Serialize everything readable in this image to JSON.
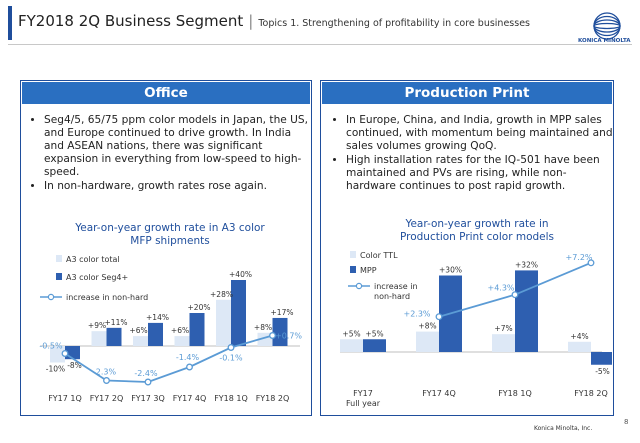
{
  "header": {
    "title": "FY2018 2Q Business Segment",
    "separator": "|",
    "subtitle": "Topics 1. Strengthening of profitability in core businesses",
    "brand": "KONICA MINOLTA"
  },
  "office": {
    "heading": "Office",
    "bullets": [
      "Seg4/5, 65/75 ppm color models in Japan, the US, and Europe continued to drive growth. In India and ASEAN nations, there was significant expansion in everything from low-speed to high-speed.",
      "In non-hardware, growth rates rose again."
    ],
    "chart_title_line1": "Year-on-year growth rate in A3 color",
    "chart_title_line2": "MFP shipments"
  },
  "production": {
    "heading": "Production Print",
    "bullets": [
      "In Europe, China, and India, growth in MPP sales continued, with momentum being maintained and sales volumes growing QoQ.",
      "High installation rates for the IQ-501 have been maintained and PVs are rising, while non-hardware continues to post rapid growth."
    ],
    "chart_title_line1": "Year-on-year growth rate in",
    "chart_title_line2": "Production Print color models"
  },
  "chart_data": [
    {
      "type": "bar",
      "title": "Year-on-year growth rate in A3 color MFP shipments",
      "categories": [
        "FY17 1Q",
        "FY17 2Q",
        "FY17 3Q",
        "FY17 4Q",
        "FY18 1Q",
        "FY18 2Q"
      ],
      "series": [
        {
          "name": "A3 color total",
          "type": "bar",
          "values": [
            -10,
            9,
            6,
            6,
            28,
            8
          ],
          "labels": [
            "-10%",
            "+9%",
            "+6%",
            "+6%",
            "+28%",
            "+8%"
          ]
        },
        {
          "name": "A3 color Seg4+",
          "type": "bar",
          "values": [
            -8,
            11,
            14,
            20,
            40,
            17
          ],
          "labels": [
            "-8%",
            "+11%",
            "+14%",
            "+20%",
            "+40%",
            "+17%"
          ]
        },
        {
          "name": "increase in non-hard",
          "type": "line",
          "values": [
            -0.5,
            -2.3,
            -2.4,
            -1.4,
            -0.1,
            0.7
          ],
          "labels": [
            "-0.5%",
            "-2.3%",
            "-2.4%",
            "-1.4%",
            "-0.1%",
            "+0.7%"
          ]
        }
      ],
      "colors": {
        "total": "#dde8f6",
        "seg4": "#2e5fb0",
        "line": "#5b9bd5"
      }
    },
    {
      "type": "bar",
      "title": "Year-on-year growth rate in Production Print color models",
      "categories": [
        "FY17 Full year",
        "FY17 4Q",
        "FY18 1Q",
        "FY18 2Q"
      ],
      "category_lines": [
        [
          "FY17",
          "Full year"
        ],
        [
          "FY17 4Q"
        ],
        [
          "FY18 1Q"
        ],
        [
          "FY18 2Q"
        ]
      ],
      "series": [
        {
          "name": "Color TTL",
          "type": "bar",
          "values": [
            5,
            8,
            7,
            4
          ],
          "labels": [
            "+5%",
            "+8%",
            "+7%",
            "+4%"
          ]
        },
        {
          "name": "MPP",
          "type": "bar",
          "values": [
            5,
            30,
            32,
            -5
          ],
          "labels": [
            "+5%",
            "+30%",
            "+32%",
            "-5%"
          ]
        },
        {
          "name": "increase in non-hard",
          "type": "line",
          "values": [
            null,
            2.3,
            4.3,
            7.2
          ],
          "labels": [
            "",
            "+2.3%",
            "+4.3%",
            "+7.2%"
          ]
        }
      ],
      "colors": {
        "total": "#dde8f6",
        "seg4": "#2e5fb0",
        "line": "#5b9bd5"
      }
    }
  ],
  "footer": {
    "brand": "Konica Minolta, Inc.",
    "page": "8"
  }
}
